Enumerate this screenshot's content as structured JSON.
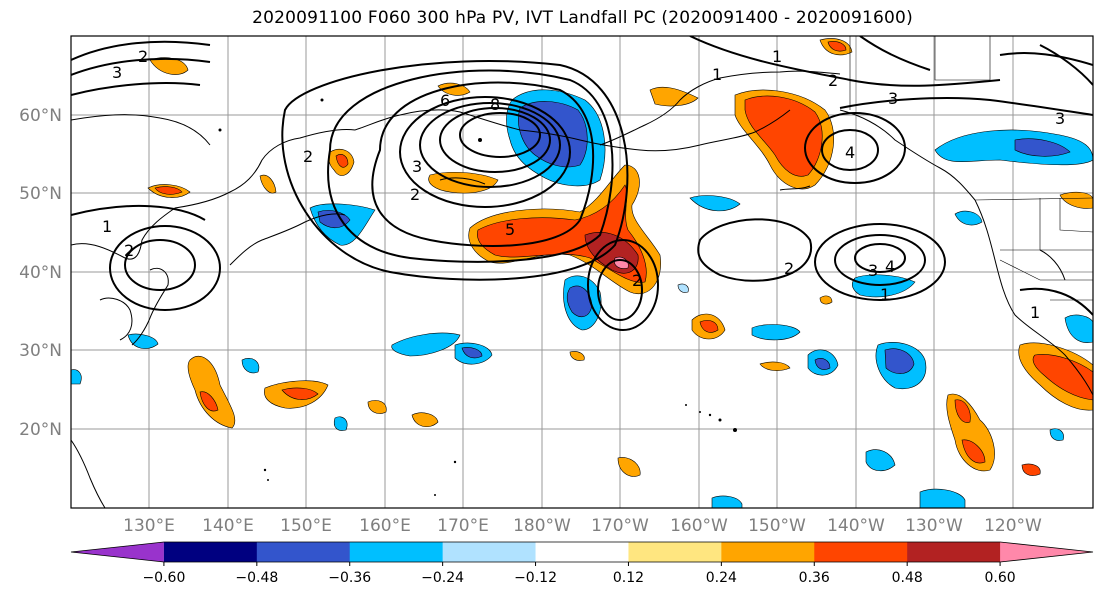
{
  "title": "2020091100 F060 300 hPa PV, IVT Landfall PC (2020091400 - 2020091600)",
  "lat_labels": [
    "60°N",
    "50°N",
    "40°N",
    "30°N",
    "20°N"
  ],
  "lon_labels": [
    "130°E",
    "140°E",
    "150°E",
    "160°E",
    "170°E",
    "180°W",
    "170°W",
    "160°W",
    "150°W",
    "140°W",
    "130°W",
    "120°W"
  ],
  "colorbar": {
    "colors": [
      "#9933cc",
      "#000080",
      "#3355cc",
      "#00bfff",
      "#b0e2ff",
      "#ffffff",
      "#ffe680",
      "#ffa500",
      "#ff4500",
      "#b22222",
      "#ff88aa"
    ],
    "tick_labels": [
      "-0.60",
      "-0.48",
      "-0.36",
      "-0.24",
      "-0.12",
      "0.12",
      "0.24",
      "0.36",
      "0.48",
      "0.60"
    ]
  },
  "contour_labels": [
    "1",
    "2",
    "2",
    "2",
    "3",
    "8",
    "6",
    "5",
    "2",
    "2",
    "3",
    "4",
    "1",
    "1",
    "2",
    "3",
    "4",
    "1",
    "2",
    "3",
    "1",
    "3"
  ]
}
